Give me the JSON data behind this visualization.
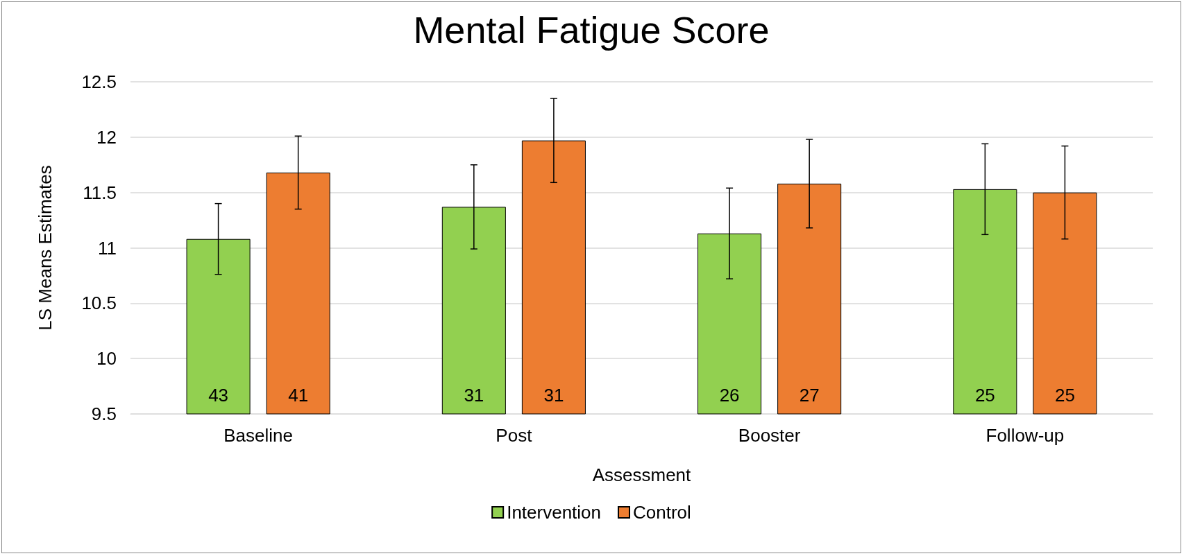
{
  "chart_data": {
    "type": "bar",
    "title": "Mental Fatigue Score",
    "xlabel": "Assessment",
    "ylabel": "LS Means Estimates",
    "categories": [
      "Baseline",
      "Post",
      "Booster",
      "Follow-up"
    ],
    "series": [
      {
        "name": "Intervention",
        "color": "#92d050",
        "values": [
          11.08,
          11.37,
          11.13,
          11.53
        ],
        "errors": [
          0.32,
          0.38,
          0.41,
          0.41
        ]
      },
      {
        "name": "Control",
        "color": "#ed7d31",
        "values": [
          11.68,
          11.97,
          11.58,
          11.5
        ],
        "errors": [
          0.33,
          0.38,
          0.4,
          0.42
        ]
      }
    ],
    "annotations": [
      "43",
      "41",
      "31",
      "31",
      "26",
      "27",
      "25",
      "25"
    ],
    "ylim": [
      9.5,
      12.5
    ],
    "yticks": [
      9.5,
      10,
      10.5,
      11,
      11.5,
      12,
      12.5
    ],
    "grid": "y",
    "legend": "bottom"
  }
}
